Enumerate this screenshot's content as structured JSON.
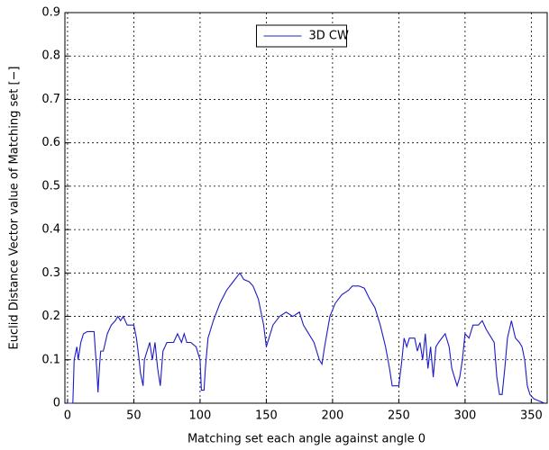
{
  "chart_data": {
    "type": "line",
    "xlabel": "Matching set each angle against angle 0",
    "ylabel": "Euclid Distance Vector value of Matching set [−]",
    "xlim": [
      -2,
      362
    ],
    "ylim": [
      0,
      0.9
    ],
    "xticks": [
      0,
      50,
      100,
      150,
      200,
      250,
      300,
      350
    ],
    "yticks": [
      0,
      0.1,
      0.2,
      0.3,
      0.4,
      0.5,
      0.6,
      0.7,
      0.8,
      0.9
    ],
    "grid": true,
    "legend": "upper center",
    "x": [
      0,
      4,
      5,
      7,
      8,
      10,
      12,
      15,
      20,
      21,
      22,
      23,
      24,
      25,
      27,
      30,
      33,
      36,
      38,
      40,
      42,
      45,
      50,
      52,
      54,
      55,
      57,
      58,
      60,
      62,
      64,
      66,
      68,
      70,
      72,
      75,
      78,
      80,
      83,
      86,
      88,
      90,
      93,
      97,
      100,
      101,
      103,
      104,
      106,
      110,
      115,
      120,
      125,
      130,
      133,
      137,
      140,
      144,
      148,
      150,
      152,
      155,
      160,
      165,
      170,
      175,
      178,
      182,
      186,
      190,
      192,
      194,
      198,
      202,
      207,
      212,
      215,
      220,
      224,
      228,
      232,
      236,
      240,
      243,
      245,
      250,
      252,
      254,
      256,
      258,
      262,
      264,
      266,
      268,
      270,
      272,
      274,
      276,
      278,
      280,
      285,
      288,
      290,
      292,
      294,
      296,
      298,
      300,
      303,
      306,
      310,
      313,
      316,
      320,
      322,
      324,
      326,
      328,
      330,
      332,
      335,
      338,
      341,
      343,
      345,
      347,
      349,
      352,
      356,
      360
    ],
    "series": [
      {
        "name": "3D CW",
        "color": "#1c1cc4",
        "values": [
          0,
          0,
          0.1,
          0.13,
          0.1,
          0.14,
          0.16,
          0.165,
          0.165,
          0.12,
          0.08,
          0.025,
          0.08,
          0.12,
          0.12,
          0.16,
          0.18,
          0.19,
          0.2,
          0.19,
          0.2,
          0.18,
          0.18,
          0.15,
          0.1,
          0.07,
          0.04,
          0.1,
          0.12,
          0.14,
          0.1,
          0.14,
          0.08,
          0.04,
          0.12,
          0.14,
          0.14,
          0.14,
          0.16,
          0.14,
          0.16,
          0.14,
          0.14,
          0.13,
          0.1,
          0.03,
          0.03,
          0.08,
          0.15,
          0.19,
          0.23,
          0.26,
          0.28,
          0.3,
          0.285,
          0.28,
          0.27,
          0.24,
          0.18,
          0.13,
          0.15,
          0.18,
          0.2,
          0.21,
          0.2,
          0.21,
          0.18,
          0.16,
          0.14,
          0.1,
          0.09,
          0.13,
          0.2,
          0.23,
          0.25,
          0.26,
          0.27,
          0.27,
          0.265,
          0.24,
          0.22,
          0.18,
          0.13,
          0.08,
          0.04,
          0.04,
          0.09,
          0.15,
          0.13,
          0.15,
          0.15,
          0.12,
          0.14,
          0.1,
          0.16,
          0.08,
          0.13,
          0.06,
          0.13,
          0.14,
          0.16,
          0.13,
          0.08,
          0.06,
          0.04,
          0.06,
          0.1,
          0.16,
          0.15,
          0.18,
          0.18,
          0.19,
          0.17,
          0.15,
          0.14,
          0.06,
          0.02,
          0.02,
          0.08,
          0.15,
          0.19,
          0.15,
          0.14,
          0.13,
          0.1,
          0.04,
          0.02,
          0.01,
          0.005,
          0
        ]
      }
    ]
  }
}
